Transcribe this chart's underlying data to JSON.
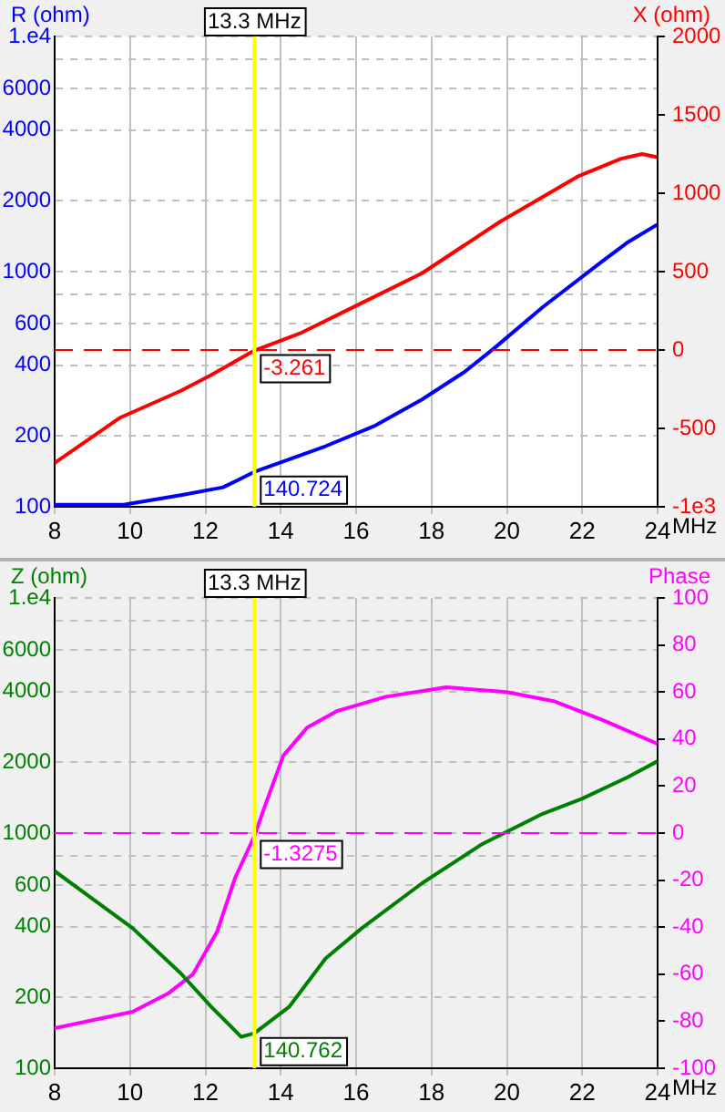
{
  "chart_data": [
    {
      "type": "line",
      "xlabel": "MHz",
      "ylabel": "R (ohm)",
      "y2label": "X (ohm)",
      "xlim": [
        8,
        24
      ],
      "xticks": [
        8,
        10,
        12,
        14,
        16,
        18,
        20,
        22,
        24
      ],
      "log": "y",
      "ylim": [
        100,
        10000
      ],
      "yticks": [
        100,
        200,
        400,
        600,
        {
          "value": 800,
          "label": null
        },
        1000,
        2000,
        4000,
        6000,
        {
          "value": 8000,
          "label": null
        },
        {
          "value": 10000,
          "label": "1.e4"
        }
      ],
      "y2lim": [
        -1000,
        2000
      ],
      "y2ticks": [
        {
          "value": -1000,
          "label": "-1e3"
        },
        -500,
        0,
        500,
        1000,
        1500,
        2000
      ],
      "grid": true,
      "marker": "none",
      "series": [
        {
          "color": "#0000ff",
          "x": [
            8,
            9.83,
            11.35,
            12.47,
            13.3,
            15.19,
            16.47,
            17.75,
            18.87,
            19.67,
            20.95,
            22.55,
            23.19,
            23.99
          ],
          "values": [
            102,
            102,
            112,
            121,
            140.724,
            181,
            220,
            286,
            374,
            473,
            706,
            1112,
            1327,
            1585
          ],
          "value_labels": [
            null,
            null,
            null,
            null,
            "140.724",
            null,
            null,
            null,
            null,
            null,
            null,
            null,
            null,
            null
          ]
        },
        {
          "axis": "y2",
          "color": "#ff0000",
          "x": [
            8,
            9.75,
            11.35,
            12.15,
            13.3,
            14.55,
            16.15,
            17.75,
            19.83,
            21.91,
            23.03,
            23.59,
            23.99
          ],
          "values": [
            -720,
            -430,
            -260,
            -160,
            -3.261,
            110,
            300,
            490,
            820,
            1110,
            1220,
            1250,
            1230
          ],
          "value_labels": [
            null,
            null,
            null,
            null,
            "-3.261",
            null,
            null,
            null,
            null,
            null,
            null,
            null,
            null
          ]
        }
      ],
      "ref_lines": [
        {
          "axis": "x",
          "value": 13.3,
          "label": "13.3 MHz",
          "color": "#ffff00"
        },
        {
          "axis": "y2",
          "value": 0,
          "color": "#ff0000",
          "line_style": "dashed"
        }
      ]
    },
    {
      "type": "line",
      "xlabel": "MHz",
      "ylabel": "Z (ohm)",
      "y2label": "Phase",
      "xlim": [
        8,
        24
      ],
      "xticks": [
        8,
        10,
        12,
        14,
        16,
        18,
        20,
        22,
        24
      ],
      "log": "y",
      "ylim": [
        100,
        10000
      ],
      "yticks": [
        100,
        200,
        400,
        600,
        {
          "value": 800,
          "label": null
        },
        1000,
        2000,
        4000,
        6000,
        {
          "value": 8000,
          "label": null
        },
        {
          "value": 10000,
          "label": "1.e4"
        }
      ],
      "y2lim": [
        -100,
        100
      ],
      "y2ticks": [
        -100,
        -80,
        -60,
        -40,
        -20,
        0,
        20,
        40,
        60,
        80,
        100
      ],
      "grid": true,
      "marker": "none",
      "series": [
        {
          "color": "#008000",
          "x": [
            8,
            10.07,
            11.35,
            12.15,
            12.95,
            13.3,
            14.23,
            15.19,
            16.15,
            17.75,
            19.35,
            20.95,
            21.99,
            23.19,
            23.99
          ],
          "values": [
            689,
            394,
            253,
            183,
            136,
            140.762,
            183,
            293,
            394,
            612,
            899,
            1208,
            1399,
            1723,
            2018
          ],
          "value_labels": [
            null,
            null,
            null,
            null,
            null,
            "140.762",
            null,
            null,
            null,
            null,
            null,
            null,
            null,
            null,
            null
          ]
        },
        {
          "axis": "y2",
          "color": "#ff00ff",
          "x": [
            8,
            10.07,
            11.03,
            11.67,
            12.31,
            12.79,
            13.3,
            13.59,
            14.07,
            14.71,
            15.51,
            16.79,
            18.39,
            19.99,
            21.27,
            22.55,
            23.99
          ],
          "values": [
            -83,
            -76,
            -68,
            -60,
            -42,
            -19,
            -1.3275,
            12,
            33,
            45,
            52,
            58,
            62,
            60,
            56,
            48,
            38
          ],
          "value_labels": [
            null,
            null,
            null,
            null,
            null,
            null,
            "-1.3275",
            null,
            null,
            null,
            null,
            null,
            null,
            null,
            null,
            null,
            null
          ]
        }
      ],
      "ref_lines": [
        {
          "axis": "x",
          "value": 13.3,
          "label": "13.3 MHz",
          "color": "#ffff00"
        },
        {
          "axis": "y2",
          "value": 0,
          "color": "#ff00ff",
          "line_style": "dashed"
        }
      ]
    }
  ]
}
